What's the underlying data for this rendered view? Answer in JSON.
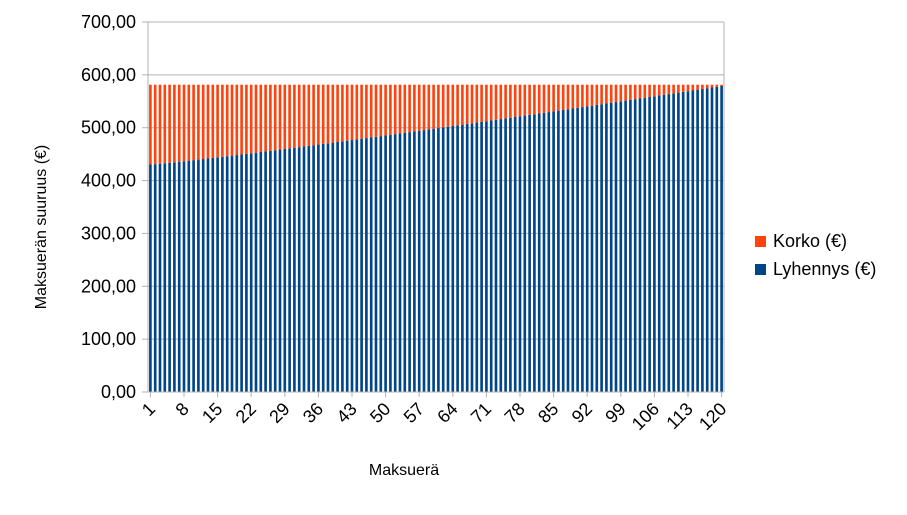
{
  "chart_data": {
    "type": "bar",
    "stacked": true,
    "xlabel": "Maksuerä",
    "ylabel": "Maksuerän suuruus (€)",
    "ylim": [
      0,
      700
    ],
    "yticks": [
      "0,00",
      "100,00",
      "200,00",
      "300,00",
      "400,00",
      "500,00",
      "600,00",
      "700,00"
    ],
    "xticks": [
      "1",
      "8",
      "15",
      "22",
      "29",
      "36",
      "43",
      "50",
      "57",
      "64",
      "71",
      "78",
      "85",
      "92",
      "99",
      "106",
      "113",
      "120"
    ],
    "grid": true,
    "legend_position": "right",
    "payment_count": 120,
    "payment_total": 581.4,
    "series": [
      {
        "name": "Korko (€)",
        "color": "#ff420e",
        "start": 151,
        "end": 2.5
      },
      {
        "name": "Lyhennys (€)",
        "color": "#004586",
        "start": 430.4,
        "end": 578.9
      }
    ]
  }
}
